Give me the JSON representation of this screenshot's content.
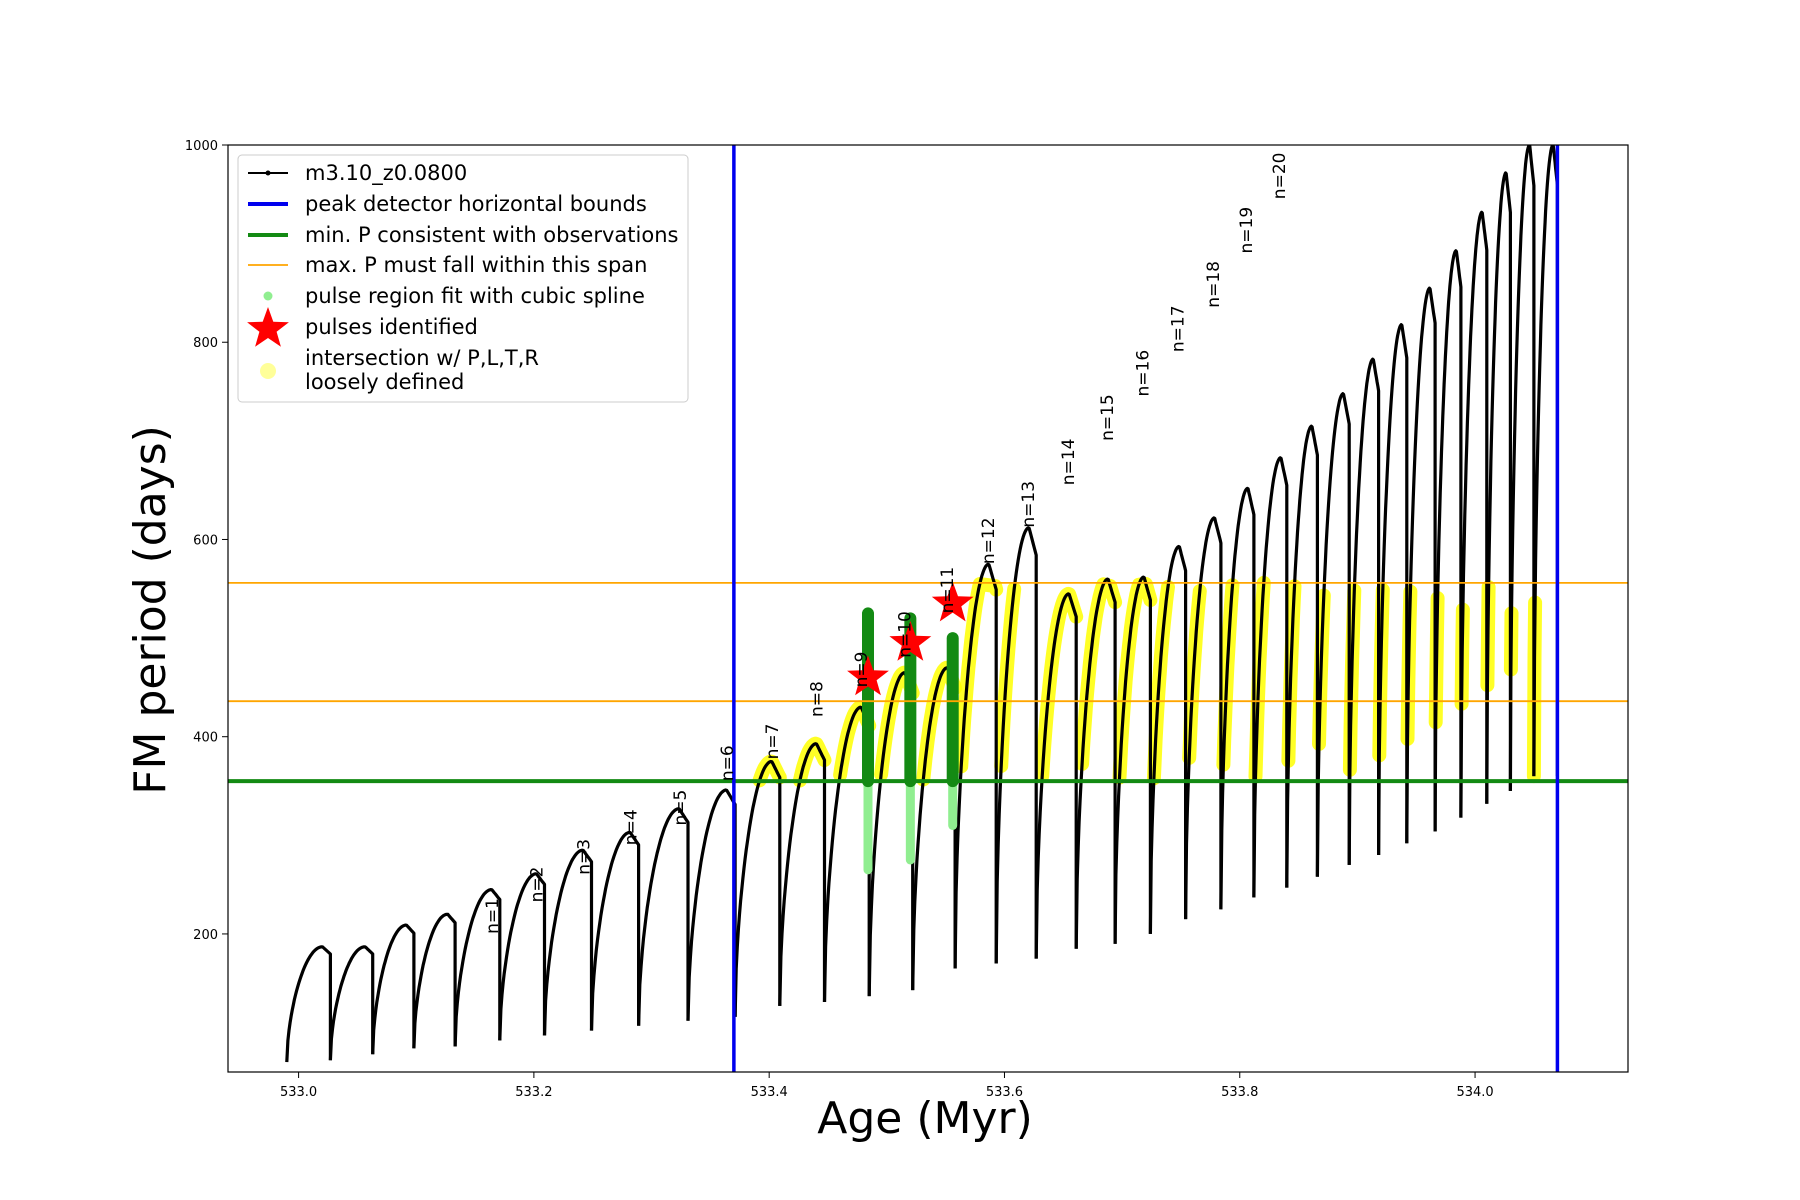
{
  "chart_data": {
    "type": "line",
    "title": "",
    "xlabel": "Age (Myr)",
    "ylabel": "FM period (days)",
    "xlim": [
      532.94,
      534.13
    ],
    "ylim": [
      60,
      1000
    ],
    "xticks": [
      533.0,
      533.2,
      533.4,
      533.6,
      533.8,
      534.0
    ],
    "xtick_labels": [
      "533.0",
      "533.2",
      "533.4",
      "533.6",
      "533.8",
      "534.0"
    ],
    "yticks": [
      200,
      400,
      600,
      800,
      1000
    ],
    "ytick_labels": [
      "200",
      "400",
      "600",
      "800",
      "1000"
    ],
    "grid": false,
    "legend_position": "upper-left",
    "legend": [
      {
        "label": "m3.10_z0.0800",
        "kind": "line-dot",
        "color": "#000000"
      },
      {
        "label": "peak detector horizontal bounds",
        "kind": "line",
        "color": "#0000ee"
      },
      {
        "label": "min. P consistent with observations",
        "kind": "line",
        "color": "#138a13"
      },
      {
        "label": "max. P must fall within this span",
        "kind": "thin-line",
        "color": "#ffa500"
      },
      {
        "label": "pulse region fit with cubic spline",
        "kind": "dot",
        "color": "#90ee90"
      },
      {
        "label": "pulses identified",
        "kind": "star",
        "color": "#ff0000"
      },
      {
        "label": "intersection w/ P,L,T,R\nloosely defined",
        "kind": "big-dot",
        "color": "#ffff99"
      }
    ],
    "vertical_lines": [
      {
        "x": 533.37,
        "name": "peak detector horizontal bounds",
        "color": "#0000ee"
      },
      {
        "x": 534.07,
        "name": "peak detector horizontal bounds",
        "color": "#0000ee"
      }
    ],
    "horizontal_lines": [
      {
        "y": 355,
        "name": "min. P consistent with observations",
        "color": "#138a13"
      },
      {
        "y": 556,
        "name": "max. P must fall within this span",
        "color": "#ffa500"
      },
      {
        "y": 436,
        "name": "max. P must fall within this span",
        "color": "#ffa500"
      }
    ],
    "series": [
      {
        "name": "m3.10_z0.0800",
        "color": "#000000",
        "pulses": [
          {
            "start": 532.99,
            "end": 533.027,
            "min": 70,
            "max": 187
          },
          {
            "start": 533.027,
            "end": 533.063,
            "min": 72,
            "max": 187
          },
          {
            "start": 533.063,
            "end": 533.098,
            "min": 78,
            "max": 209
          },
          {
            "start": 533.098,
            "end": 533.133,
            "min": 84,
            "max": 220
          },
          {
            "start": 533.133,
            "end": 533.171,
            "min": 86,
            "max": 245
          },
          {
            "start": 533.171,
            "end": 533.209,
            "min": 92,
            "max": 261
          },
          {
            "start": 533.209,
            "end": 533.249,
            "min": 97,
            "max": 285
          },
          {
            "start": 533.249,
            "end": 533.289,
            "min": 102,
            "max": 303
          },
          {
            "start": 533.289,
            "end": 533.331,
            "min": 107,
            "max": 327
          },
          {
            "start": 533.331,
            "end": 533.371,
            "min": 112,
            "max": 346
          },
          {
            "start": 533.371,
            "end": 533.409,
            "min": 116,
            "max": 375
          },
          {
            "start": 533.409,
            "end": 533.447,
            "min": 127,
            "max": 393
          },
          {
            "start": 533.447,
            "end": 533.485,
            "min": 131,
            "max": 430
          },
          {
            "start": 533.485,
            "end": 533.522,
            "min": 137,
            "max": 465
          },
          {
            "start": 533.522,
            "end": 533.558,
            "min": 143,
            "max": 470
          },
          {
            "start": 533.558,
            "end": 533.593,
            "min": 165,
            "max": 575
          },
          {
            "start": 533.593,
            "end": 533.627,
            "min": 170,
            "max": 612
          },
          {
            "start": 533.627,
            "end": 533.661,
            "min": 175,
            "max": 545
          },
          {
            "start": 533.661,
            "end": 533.694,
            "min": 185,
            "max": 560
          },
          {
            "start": 533.694,
            "end": 533.724,
            "min": 190,
            "max": 562
          },
          {
            "start": 533.724,
            "end": 533.754,
            "min": 200,
            "max": 593
          },
          {
            "start": 533.754,
            "end": 533.784,
            "min": 215,
            "max": 622
          },
          {
            "start": 533.784,
            "end": 533.812,
            "min": 225,
            "max": 652
          },
          {
            "start": 533.812,
            "end": 533.84,
            "min": 237,
            "max": 683
          },
          {
            "start": 533.84,
            "end": 533.866,
            "min": 247,
            "max": 715
          },
          {
            "start": 533.866,
            "end": 533.893,
            "min": 258,
            "max": 748
          },
          {
            "start": 533.893,
            "end": 533.918,
            "min": 270,
            "max": 783
          },
          {
            "start": 533.918,
            "end": 533.942,
            "min": 280,
            "max": 818
          },
          {
            "start": 533.942,
            "end": 533.966,
            "min": 292,
            "max": 855
          },
          {
            "start": 533.966,
            "end": 533.988,
            "min": 304,
            "max": 893
          },
          {
            "start": 533.988,
            "end": 534.01,
            "min": 318,
            "max": 932
          },
          {
            "start": 534.01,
            "end": 534.03,
            "min": 332,
            "max": 972
          },
          {
            "start": 534.03,
            "end": 534.05,
            "min": 345,
            "max": 1000
          },
          {
            "start": 534.05,
            "end": 534.07,
            "min": 360,
            "max": 1000
          }
        ]
      }
    ],
    "pulse_labels": [
      {
        "text": "n=1",
        "x": 533.171,
        "y": 200
      },
      {
        "text": "n=2",
        "x": 533.209,
        "y": 232
      },
      {
        "text": "n=3",
        "x": 533.249,
        "y": 260
      },
      {
        "text": "n=4",
        "x": 533.289,
        "y": 290
      },
      {
        "text": "n=5",
        "x": 533.331,
        "y": 310
      },
      {
        "text": "n=6",
        "x": 533.371,
        "y": 355
      },
      {
        "text": "n=7",
        "x": 533.409,
        "y": 377
      },
      {
        "text": "n=8",
        "x": 533.447,
        "y": 420
      },
      {
        "text": "n=9",
        "x": 533.485,
        "y": 450
      },
      {
        "text": "n=10",
        "x": 533.522,
        "y": 480
      },
      {
        "text": "n=11",
        "x": 533.558,
        "y": 525
      },
      {
        "text": "n=12",
        "x": 533.593,
        "y": 575
      },
      {
        "text": "n=13",
        "x": 533.627,
        "y": 612
      },
      {
        "text": "n=14",
        "x": 533.661,
        "y": 655
      },
      {
        "text": "n=15",
        "x": 533.694,
        "y": 700
      },
      {
        "text": "n=16",
        "x": 533.724,
        "y": 745
      },
      {
        "text": "n=17",
        "x": 533.754,
        "y": 790
      },
      {
        "text": "n=18",
        "x": 533.784,
        "y": 835
      },
      {
        "text": "n=19",
        "x": 533.812,
        "y": 890
      },
      {
        "text": "n=20",
        "x": 533.84,
        "y": 945
      }
    ],
    "pulses_identified": [
      {
        "x": 533.484,
        "y": 460
      },
      {
        "x": 533.52,
        "y": 495
      },
      {
        "x": 533.556,
        "y": 535
      }
    ],
    "spline_fit_regions": [
      {
        "x": 533.484,
        "ymin": 265,
        "ymax": 500
      },
      {
        "x": 533.52,
        "ymin": 275,
        "ymax": 500
      },
      {
        "x": 533.556,
        "ymin": 310,
        "ymax": 500
      }
    ],
    "green_fit_segments": [
      {
        "x": 533.484,
        "ymin": 355,
        "ymax": 525
      },
      {
        "x": 533.52,
        "ymin": 355,
        "ymax": 520
      },
      {
        "x": 533.556,
        "ymin": 355,
        "ymax": 500
      }
    ],
    "yellow_band": {
      "ymin": 355,
      "ymax": 556,
      "color": "#ffff00"
    }
  }
}
